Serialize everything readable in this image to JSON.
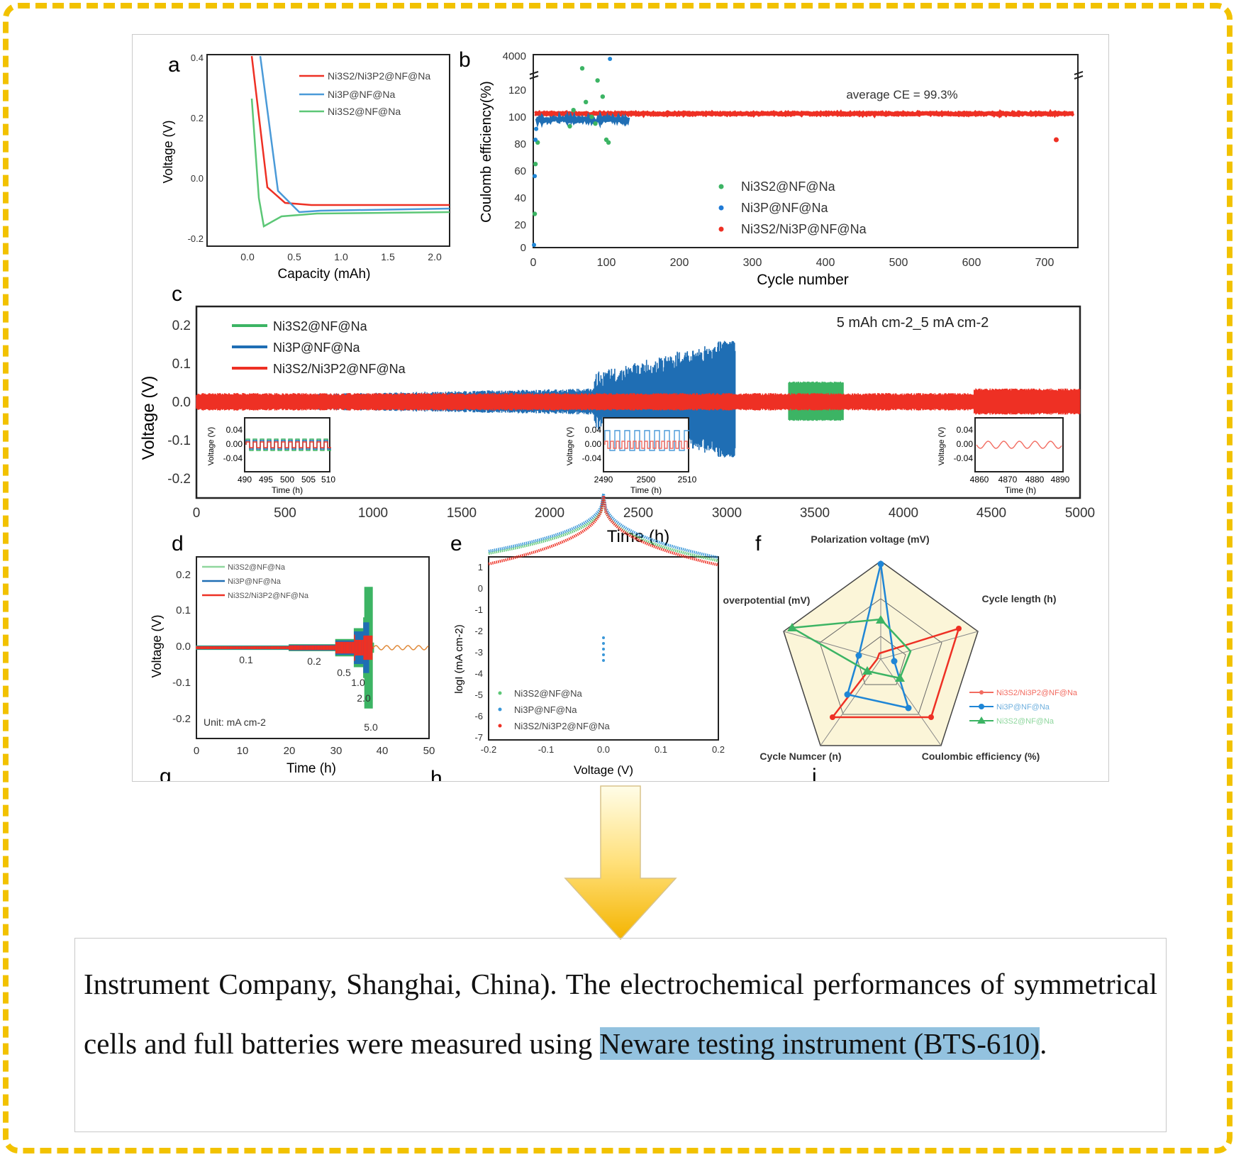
{
  "panels": {
    "a": {
      "letter": "a",
      "xlabel": "Capacity (mAh)",
      "ylabel": "Voltage (V)",
      "xticks": [
        "0.0",
        "0.5",
        "1.0",
        "1.5",
        "2.0"
      ],
      "yticks": [
        "0.4",
        "0.2",
        "0.0",
        "-0.2"
      ],
      "legend": [
        "Ni3S2/Ni3P2@NF@Na",
        "Ni3P@NF@Na",
        "Ni3S2@NF@Na"
      ]
    },
    "b": {
      "letter": "b",
      "xlabel": "Cycle number",
      "ylabel": "Coulomb efficiency(%)",
      "xticks": [
        "0",
        "100",
        "200",
        "300",
        "400",
        "500",
        "600",
        "700"
      ],
      "yticks": [
        "4000",
        "120",
        "100",
        "80",
        "60",
        "40",
        "20",
        "0"
      ],
      "annotation": "average CE = 99.3%",
      "legend": [
        "Ni3S2@NF@Na",
        "Ni3P@NF@Na",
        "Ni3S2/Ni3P@NF@Na"
      ]
    },
    "c": {
      "letter": "c",
      "xlabel": "Time (h)",
      "ylabel": "Voltage (V)",
      "xticks": [
        "0",
        "500",
        "1000",
        "1500",
        "2000",
        "2500",
        "3000",
        "3500",
        "4000",
        "4500",
        "5000"
      ],
      "yticks": [
        "0.2",
        "0.1",
        "0.0",
        "-0.1",
        "-0.2"
      ],
      "condition": "5 mAh cm-2_5 mA cm-2",
      "legend": [
        "Ni3S2@NF@Na",
        "Ni3P@NF@Na",
        "Ni3S2/Ni3P2@NF@Na"
      ],
      "insets": [
        {
          "ylabel": "Voltage (V)",
          "xlabel": "Time (h)",
          "yticks": [
            "0.04",
            "0.00",
            "-0.04"
          ],
          "xticks": [
            "490",
            "495",
            "500",
            "505",
            "510"
          ]
        },
        {
          "ylabel": "Voltage (V)",
          "xlabel": "Time (h)",
          "yticks": [
            "0.04",
            "0.00",
            "-0.04"
          ],
          "xticks": [
            "2490",
            "2500",
            "2510"
          ]
        },
        {
          "ylabel": "Voltage (V)",
          "xlabel": "Time (h)",
          "yticks": [
            "0.04",
            "0.00",
            "-0.04"
          ],
          "xticks": [
            "4860",
            "4870",
            "4880",
            "4890"
          ]
        }
      ]
    },
    "d": {
      "letter": "d",
      "xlabel": "Time (h)",
      "ylabel": "Voltage (V)",
      "xticks": [
        "0",
        "10",
        "20",
        "30",
        "40",
        "50"
      ],
      "yticks": [
        "0.2",
        "0.1",
        "0.0",
        "-0.1",
        "-0.2"
      ],
      "unit": "Unit: mA cm-2",
      "rates": [
        "0.1",
        "0.2",
        "0.5",
        "1.0",
        "2.0",
        "5.0"
      ],
      "legend": [
        "Ni3S2@NF@Na",
        "Ni3P@NF@Na",
        "Ni3S2/Ni3P2@NF@Na"
      ]
    },
    "e": {
      "letter": "e",
      "xlabel": "Voltage (V)",
      "ylabel": "logI (mA cm-2)",
      "xticks": [
        "-0.2",
        "-0.1",
        "0.0",
        "0.1",
        "0.2"
      ],
      "yticks": [
        "1",
        "0",
        "-1",
        "-2",
        "-3",
        "-4",
        "-5",
        "-6",
        "-7"
      ],
      "legend": [
        "Ni3S2@NF@Na",
        "Ni3P@NF@Na",
        "Ni3S2/Ni3P2@NF@Na"
      ]
    },
    "f": {
      "letter": "f",
      "axes": [
        "Polarization voltage (mV)",
        "Cycle length (h)",
        "Coulombic efficiency (%)",
        "Cycle Numcer (n)",
        "overpotential (mV)"
      ],
      "legend": [
        "Ni3S2/Ni3P2@NF@Na",
        "Ni3P@NF@Na",
        "Ni3S2@NF@Na"
      ]
    },
    "g": {
      "letter": "g"
    },
    "h": {
      "letter": "h"
    },
    "i": {
      "letter": "i"
    }
  },
  "colors": {
    "green": "#3cb464",
    "blue": "#1f6eb4",
    "red": "#ee3024",
    "lightred": "#f26b60",
    "lightblue": "#6fb0de",
    "lightgreen": "#8fd79e"
  },
  "paragraph": {
    "part1": "Instrument Company, Shanghai, China). The electrochemical performances of symmetrical cells and full batteries were measured using ",
    "highlight": "Neware testing instrument (BTS-610)",
    "part3": "."
  }
}
